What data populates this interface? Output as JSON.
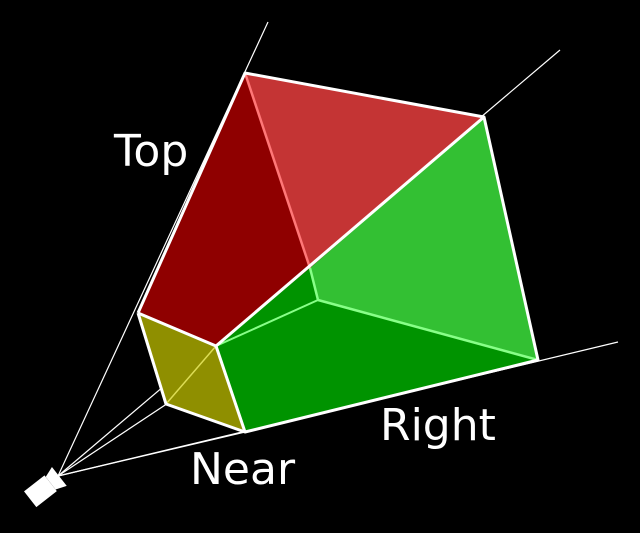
{
  "labels": {
    "top": "Top",
    "right": "Right",
    "near": "Near"
  },
  "colors": {
    "background": "#000000",
    "top_face": "#8f0000",
    "top_face_back": "#c43434",
    "right_face": "#009300",
    "right_face_back": "#33c033",
    "near_face": "#8f8f00",
    "back_edges_red": "#ff7777",
    "back_edges_green": "#88ff88",
    "edges": "#ffffff"
  }
}
